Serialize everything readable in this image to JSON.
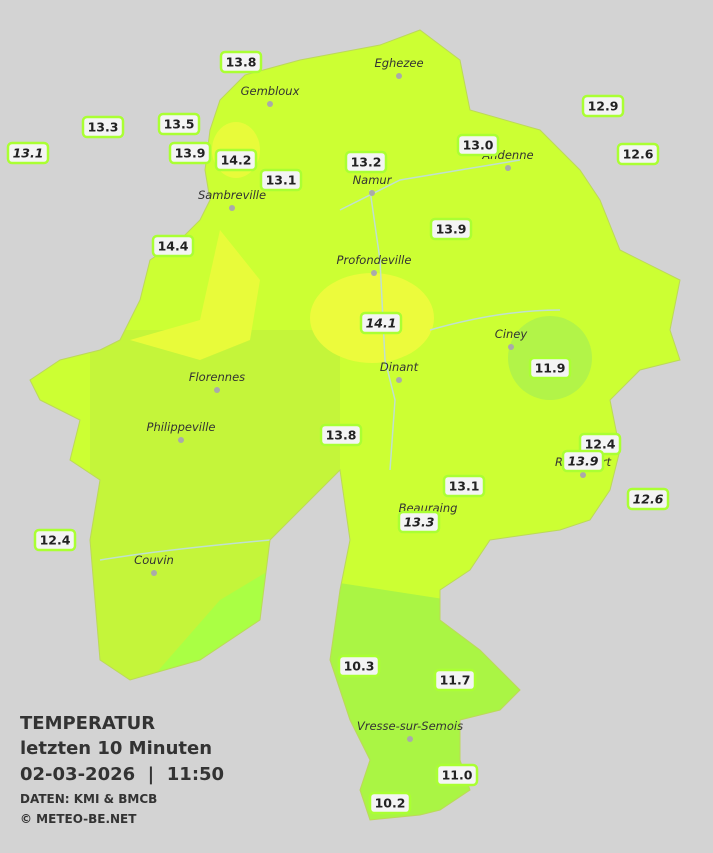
{
  "map": {
    "cities": [
      "Eghezee",
      "Gembloux",
      "Andenne",
      "Namur",
      "Sambreville",
      "Profondeville",
      "Ciney",
      "Dinant",
      "Florennes",
      "Philippeville",
      "Rochefort",
      "Beauraing",
      "Couvin",
      "Vresse-sur-Semois"
    ],
    "stations": [
      {
        "label": "13.8"
      },
      {
        "label": "13.3"
      },
      {
        "label": "13.5"
      },
      {
        "label": "13.1",
        "italic": true
      },
      {
        "label": "13.9"
      },
      {
        "label": "14.2"
      },
      {
        "label": "13.1"
      },
      {
        "label": "13.2"
      },
      {
        "label": "13.0"
      },
      {
        "label": "12.9"
      },
      {
        "label": "12.6"
      },
      {
        "label": "14.4"
      },
      {
        "label": "13.9"
      },
      {
        "label": "14.1",
        "italic": true
      },
      {
        "label": "11.9"
      },
      {
        "label": "13.8"
      },
      {
        "label": "12.4"
      },
      {
        "label": "13.9",
        "italic": true
      },
      {
        "label": "13.1"
      },
      {
        "label": "12.6",
        "italic": true
      },
      {
        "label": "13.3",
        "italic": true
      },
      {
        "label": "12.4"
      },
      {
        "label": "10.3"
      },
      {
        "label": "11.7"
      },
      {
        "label": "11.0"
      },
      {
        "label": "10.2"
      }
    ],
    "info": {
      "title": "TEMPERATUR",
      "period": "letzten 10 Minuten",
      "datetime": "02-03-2026  |  11:50",
      "source": "DATEN: KMI & BMCB",
      "copyright": "© METEO-BE.NET"
    }
  }
}
